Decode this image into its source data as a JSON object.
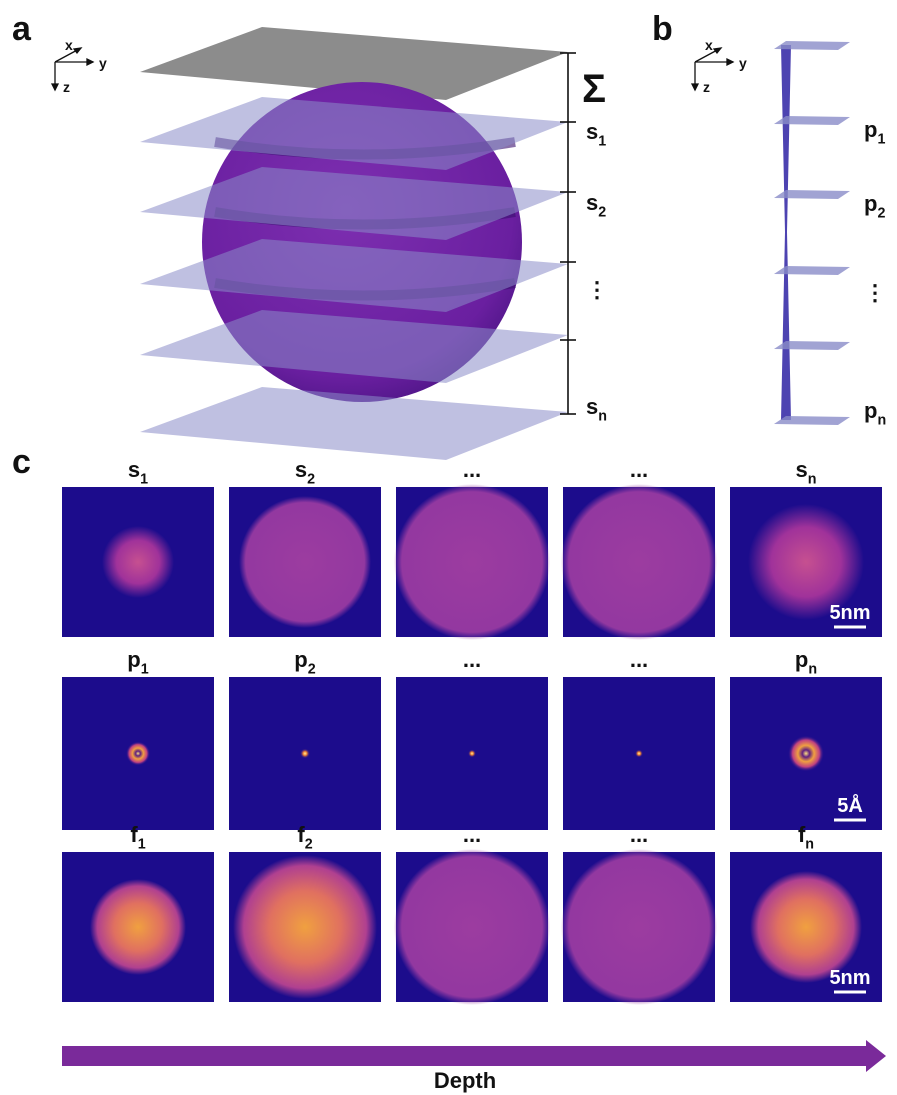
{
  "panel_a": {
    "label": "a",
    "axes": [
      "x",
      "y",
      "z"
    ],
    "sum_symbol": "Σ",
    "slices": [
      {
        "main": "s",
        "sub": "1"
      },
      {
        "main": "s",
        "sub": "2"
      },
      {
        "main": "⋮"
      },
      {
        "main": "s",
        "sub": "n"
      }
    ]
  },
  "panel_b": {
    "label": "b",
    "axes": [
      "x",
      "y",
      "z"
    ],
    "slices": [
      {
        "main": "p",
        "sub": "1"
      },
      {
        "main": "p",
        "sub": "2"
      },
      {
        "main": "⋮"
      },
      {
        "main": "p",
        "sub": "n"
      }
    ]
  },
  "panel_c": {
    "label": "c",
    "rows": [
      {
        "titles": [
          {
            "main": "s",
            "sub": "1"
          },
          {
            "main": "s",
            "sub": "2"
          },
          {
            "main": "..."
          },
          {
            "main": "..."
          },
          {
            "main": "s",
            "sub": "n"
          }
        ],
        "scale_bar": "5nm"
      },
      {
        "titles": [
          {
            "main": "p",
            "sub": "1"
          },
          {
            "main": "p",
            "sub": "2"
          },
          {
            "main": "..."
          },
          {
            "main": "..."
          },
          {
            "main": "p",
            "sub": "n"
          }
        ],
        "scale_bar": "5Å"
      },
      {
        "titles": [
          {
            "main": "f",
            "sub": "1"
          },
          {
            "main": "f",
            "sub": "2"
          },
          {
            "main": "..."
          },
          {
            "main": "..."
          },
          {
            "main": "f",
            "sub": "n"
          }
        ],
        "scale_bar": "5nm"
      }
    ],
    "arrow_label": "Depth"
  }
}
